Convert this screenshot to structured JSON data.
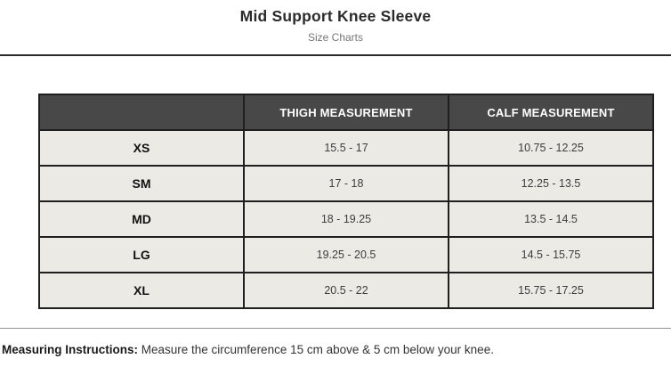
{
  "page": {
    "title": "Mid Support Knee Sleeve",
    "subtitle": "Size Charts"
  },
  "table": {
    "columns": [
      "",
      "THIGH MEASUREMENT",
      "CALF MEASUREMENT"
    ],
    "rows": [
      {
        "size": "XS",
        "thigh": "15.5 - 17",
        "calf": "10.75 - 12.25"
      },
      {
        "size": "SM",
        "thigh": "17 - 18",
        "calf": "12.25 - 13.5"
      },
      {
        "size": "MD",
        "thigh": "18 - 19.25",
        "calf": "13.5 - 14.5"
      },
      {
        "size": "LG",
        "thigh": "19.25 - 20.5",
        "calf": "14.5 - 15.75"
      },
      {
        "size": "XL",
        "thigh": "20.5 - 22",
        "calf": "15.75 - 17.25"
      }
    ]
  },
  "footer": {
    "label": "Measuring Instructions:",
    "text": " Measure the circumference 15 cm above & 5 cm below your knee."
  },
  "colors": {
    "header_bg": "#484848",
    "header_text": "#ffffff",
    "row_bg": "#eceae4",
    "border": "#1f1f1f",
    "rule_top": "#2a2a2a",
    "rule_bottom": "#8f8f8f"
  }
}
